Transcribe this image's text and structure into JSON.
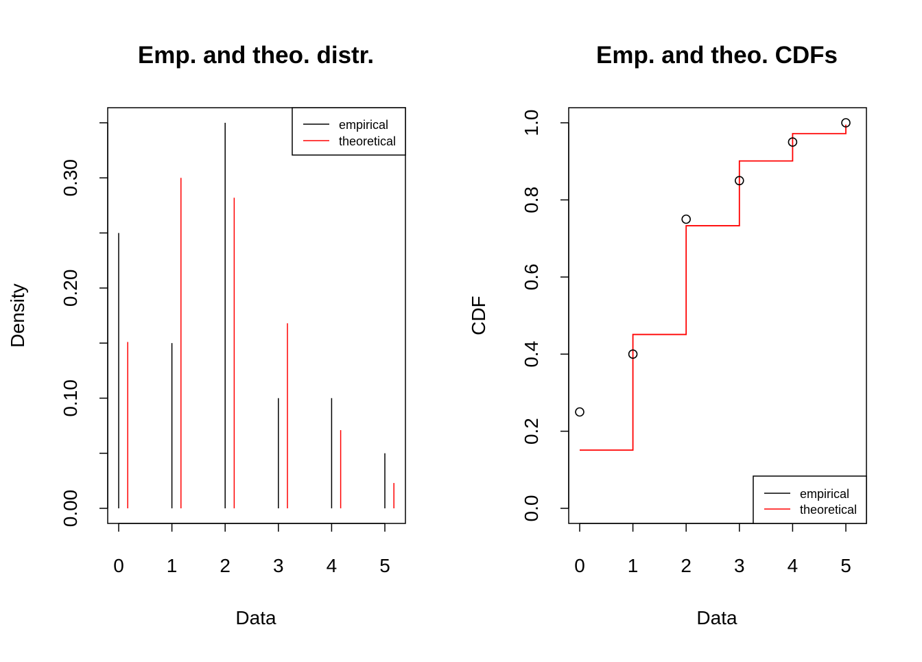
{
  "chart_data": [
    {
      "type": "bar",
      "title": "Emp. and theo. distr.",
      "xlabel": "Data",
      "ylabel": "Density",
      "x_ticks": [
        "0",
        "1",
        "2",
        "3",
        "4",
        "5"
      ],
      "y_ticks": [
        "0.00",
        "0.10",
        "0.20",
        "0.30"
      ],
      "y_tick_values": [
        0,
        0.1,
        0.2,
        0.3
      ],
      "xlim": [
        -0.2,
        5.37
      ],
      "ylim": [
        0,
        0.35
      ],
      "grid": false,
      "legend": {
        "position": "top-right",
        "entries": [
          "empirical",
          "theoretical"
        ]
      },
      "x": [
        0,
        1,
        2,
        3,
        4,
        5
      ],
      "series": [
        {
          "name": "empirical",
          "color": "#000000",
          "values": [
            0.25,
            0.15,
            0.35,
            0.1,
            0.1,
            0.05
          ]
        },
        {
          "name": "theoretical",
          "color": "#ff0000",
          "values": [
            0.151,
            0.3,
            0.282,
            0.168,
            0.071,
            0.023
          ]
        }
      ]
    },
    {
      "type": "line",
      "title": "Emp. and theo. CDFs",
      "xlabel": "Data",
      "ylabel": "CDF",
      "x_ticks": [
        "0",
        "1",
        "2",
        "3",
        "4",
        "5"
      ],
      "y_ticks": [
        "0.0",
        "0.2",
        "0.4",
        "0.6",
        "0.8",
        "1.0"
      ],
      "y_tick_values": [
        0,
        0.2,
        0.4,
        0.6,
        0.8,
        1.0
      ],
      "xlim": [
        -0.2,
        5.37
      ],
      "ylim": [
        0,
        1.0
      ],
      "grid": false,
      "legend": {
        "position": "bottom-right",
        "entries": [
          "empirical",
          "theoretical"
        ]
      },
      "series": [
        {
          "name": "empirical",
          "color": "#000000",
          "marker": "open-circle",
          "x": [
            0,
            1,
            2,
            3,
            4,
            5
          ],
          "values": [
            0.25,
            0.4,
            0.75,
            0.85,
            0.95,
            1.0
          ]
        },
        {
          "name": "theoretical",
          "color": "#ff0000",
          "step": true,
          "x": [
            0,
            1,
            2,
            3,
            4,
            5
          ],
          "values": [
            0.151,
            0.451,
            0.733,
            0.901,
            0.972,
            0.995
          ]
        }
      ]
    }
  ]
}
